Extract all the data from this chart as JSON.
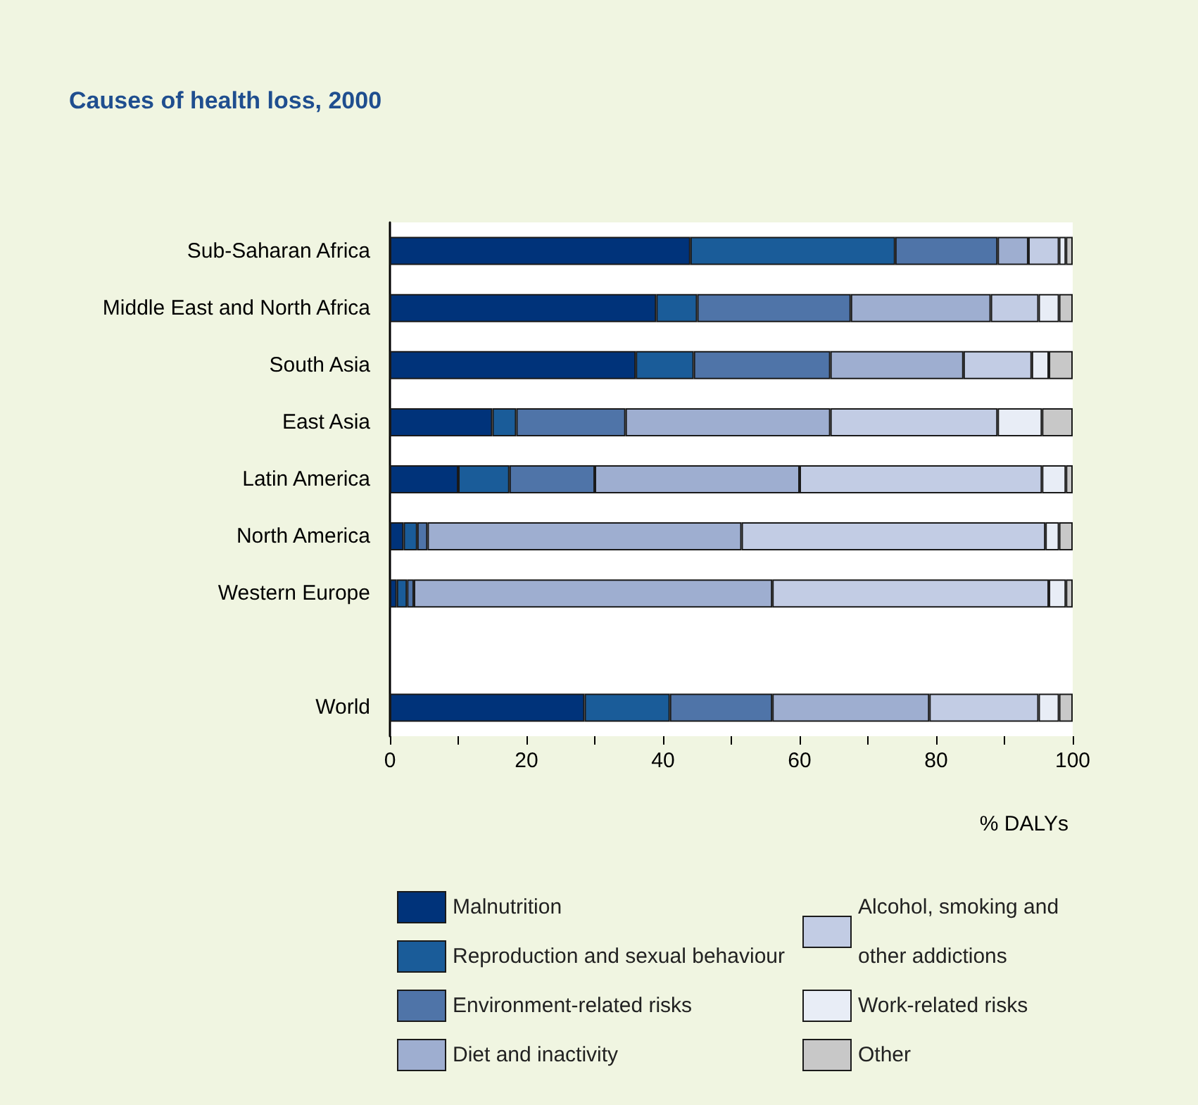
{
  "chart_data": {
    "type": "bar",
    "orientation": "horizontal",
    "stacked": true,
    "title": "Causes of health loss, 2000",
    "xlabel": "% DALYs",
    "categories": [
      "Sub-Saharan Africa",
      "Middle East and North Africa",
      "South Asia",
      "East Asia",
      "Latin America",
      "North America",
      "Western Europe",
      null,
      "World"
    ],
    "series": [
      {
        "name": "Malnutrition",
        "color": "#00337a",
        "values": [
          44,
          39,
          36,
          15,
          10,
          2,
          1,
          null,
          28.5
        ]
      },
      {
        "name": "Reproduction and sexual behaviour",
        "color": "#1a5c99",
        "values": [
          30,
          6,
          8.5,
          3.5,
          7.5,
          2,
          1.5,
          null,
          12.5
        ]
      },
      {
        "name": "Environment-related risks",
        "color": "#4f74a8",
        "values": [
          15,
          22.5,
          20,
          16,
          12.5,
          1.5,
          1,
          null,
          15
        ]
      },
      {
        "name": "Diet and inactivity",
        "color": "#9eaed0",
        "values": [
          4.5,
          20.5,
          19.5,
          30,
          30,
          46,
          52.5,
          null,
          23
        ]
      },
      {
        "name": "Alcohol, smoking and other addictions",
        "color": "#c2cce4",
        "values": [
          4.5,
          7,
          10,
          24.5,
          35.5,
          44.5,
          40.5,
          null,
          16
        ]
      },
      {
        "name": "Work-related risks",
        "color": "#e8edf6",
        "values": [
          1,
          3,
          2.5,
          6.5,
          3.5,
          2,
          2.5,
          null,
          3
        ]
      },
      {
        "name": "Other",
        "color": "#c8c8c8",
        "values": [
          1,
          2,
          3.5,
          4.5,
          1,
          2,
          1,
          null,
          2
        ]
      }
    ],
    "xlim": [
      0,
      100
    ],
    "xticks": [
      0,
      {
        "value": 10,
        "label": null
      },
      20,
      {
        "value": 30,
        "label": null
      },
      40,
      {
        "value": 50,
        "label": null
      },
      60,
      {
        "value": 70,
        "label": null
      },
      80,
      {
        "value": 90,
        "label": null
      },
      100
    ],
    "grid": false,
    "legend": "bottom"
  }
}
